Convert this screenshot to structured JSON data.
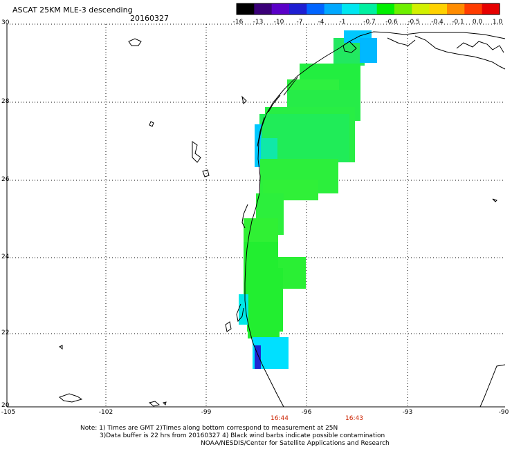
{
  "header": {
    "title": "ASCAT 25KM MLE-3 descending",
    "date": "20160327"
  },
  "colorbar": {
    "ticks": [
      "-16",
      "-13",
      "-10",
      "-7",
      "-4",
      "-1",
      "-0.7",
      "-0.6",
      "-0.5",
      "-0.4",
      "-0.1",
      "0.0",
      "1.0"
    ],
    "colors": [
      "#000000",
      "#3a0078",
      "#5a00c8",
      "#1e1ed2",
      "#0064ff",
      "#00a8ff",
      "#00e6f0",
      "#00f0a0",
      "#00f000",
      "#6ef000",
      "#d2f000",
      "#ffd200",
      "#ff8c00",
      "#ff3c00",
      "#e60000"
    ]
  },
  "map": {
    "lat_labels": [
      "30",
      "28",
      "26",
      "24",
      "22",
      "20"
    ],
    "lon_labels": [
      "-105",
      "-102",
      "-99",
      "-96",
      "-93",
      "-90"
    ],
    "times": [
      "16:44",
      "16:43"
    ]
  },
  "notes": [
    "Note: 1) Times are GMT 2)Times along bottom correspond to measurement at 25N",
    "3)Data buffer is 22 hrs from 20160327 4) Black wind barbs indicate possible contamination",
    "NOAA/NESDIS/Center for Satellite Applications and Research"
  ]
}
